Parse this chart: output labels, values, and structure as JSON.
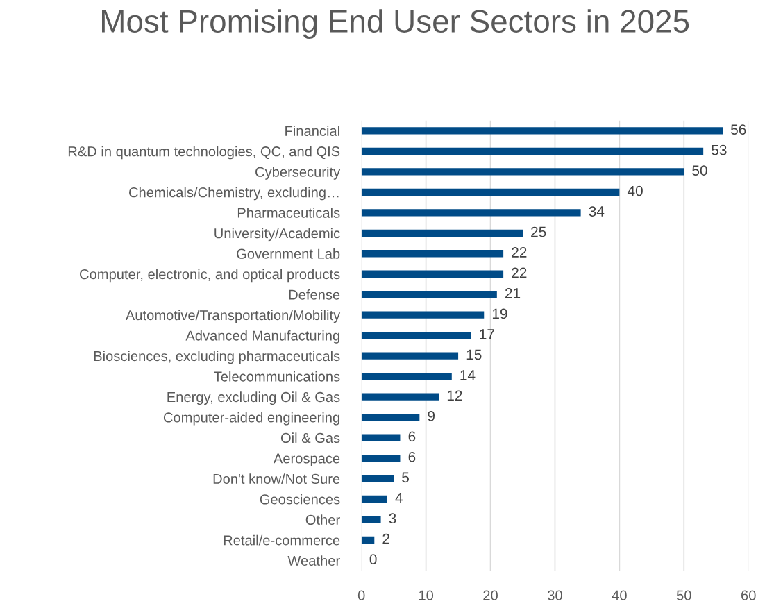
{
  "chart_data": {
    "type": "bar",
    "orientation": "horizontal",
    "title": "Most Promising End User Sectors in 2025",
    "categories": [
      "Financial",
      "R&D in quantum technologies, QC, and QIS",
      "Cybersecurity",
      "Chemicals/Chemistry, excluding…",
      "Pharmaceuticals",
      "University/Academic",
      "Government Lab",
      "Computer, electronic, and optical products",
      "Defense",
      "Automotive/Transportation/Mobility",
      "Advanced Manufacturing",
      "Biosciences, excluding pharmaceuticals",
      "Telecommunications",
      "Energy, excluding Oil & Gas",
      "Computer-aided engineering",
      "Oil & Gas",
      "Aerospace",
      "Don't know/Not Sure",
      "Geosciences",
      "Other",
      "Retail/e-commerce",
      "Weather"
    ],
    "values": [
      56,
      53,
      50,
      40,
      34,
      25,
      22,
      22,
      21,
      19,
      17,
      15,
      14,
      12,
      9,
      6,
      6,
      5,
      4,
      3,
      2,
      0
    ],
    "color": "#004b87",
    "xlim": [
      0,
      60
    ],
    "xticks": [
      0,
      10,
      20,
      30,
      40,
      50,
      60
    ],
    "grid": "x",
    "data_labels": true
  }
}
